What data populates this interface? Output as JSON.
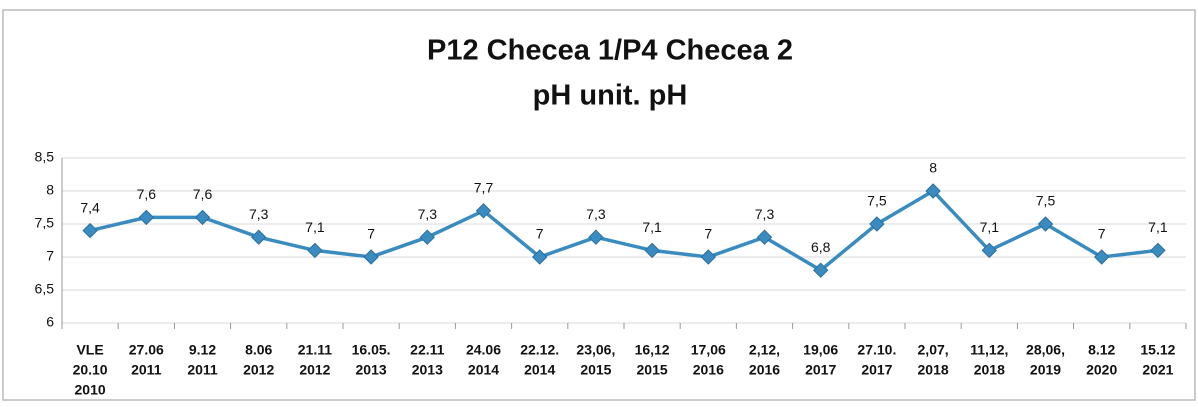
{
  "chart_data": {
    "type": "line",
    "title": "P12 Checea 1/P4 Checea 2",
    "subtitle": "pH unit. pH",
    "categories": [
      [
        "VLE",
        "20.10",
        "2010"
      ],
      [
        "27.06",
        "2011"
      ],
      [
        "9.12",
        "2011"
      ],
      [
        "8.06",
        "2012"
      ],
      [
        "21.11",
        "2012"
      ],
      [
        "16.05.",
        "2013"
      ],
      [
        "22.11",
        "2013"
      ],
      [
        "24.06",
        "2014"
      ],
      [
        "22.12.",
        "2014"
      ],
      [
        "23,06,",
        "2015"
      ],
      [
        "16,12",
        "2015"
      ],
      [
        "17,06",
        "2016"
      ],
      [
        "2,12,",
        "2016"
      ],
      [
        "19,06",
        "2017"
      ],
      [
        "27.10.",
        "2017"
      ],
      [
        "2,07,",
        "2018"
      ],
      [
        "11,12,",
        "2018"
      ],
      [
        "28,06,",
        "2019"
      ],
      [
        "8.12",
        "2020"
      ],
      [
        "15.12",
        "2021"
      ]
    ],
    "values": [
      7.4,
      7.6,
      7.6,
      7.3,
      7.1,
      7,
      7.3,
      7.7,
      7,
      7.3,
      7.1,
      7,
      7.3,
      6.8,
      7.5,
      8,
      7.1,
      7.5,
      7,
      7.1
    ],
    "value_labels": [
      "7,4",
      "7,6",
      "7,6",
      "7,3",
      "7,1",
      "7",
      "7,3",
      "7,7",
      "7",
      "7,3",
      "7,1",
      "7",
      "7,3",
      "6,8",
      "7,5",
      "8",
      "7,1",
      "7,5",
      "7",
      "7,1"
    ],
    "color": "#3a8cc0",
    "ylim": [
      6,
      8.5
    ],
    "yticks": [
      6,
      {
        "value": 6.5,
        "label": "6,5"
      },
      7,
      {
        "value": 7.5,
        "label": "7,5"
      },
      8,
      {
        "value": 8.5,
        "label": "8,5"
      }
    ],
    "grid": true
  }
}
